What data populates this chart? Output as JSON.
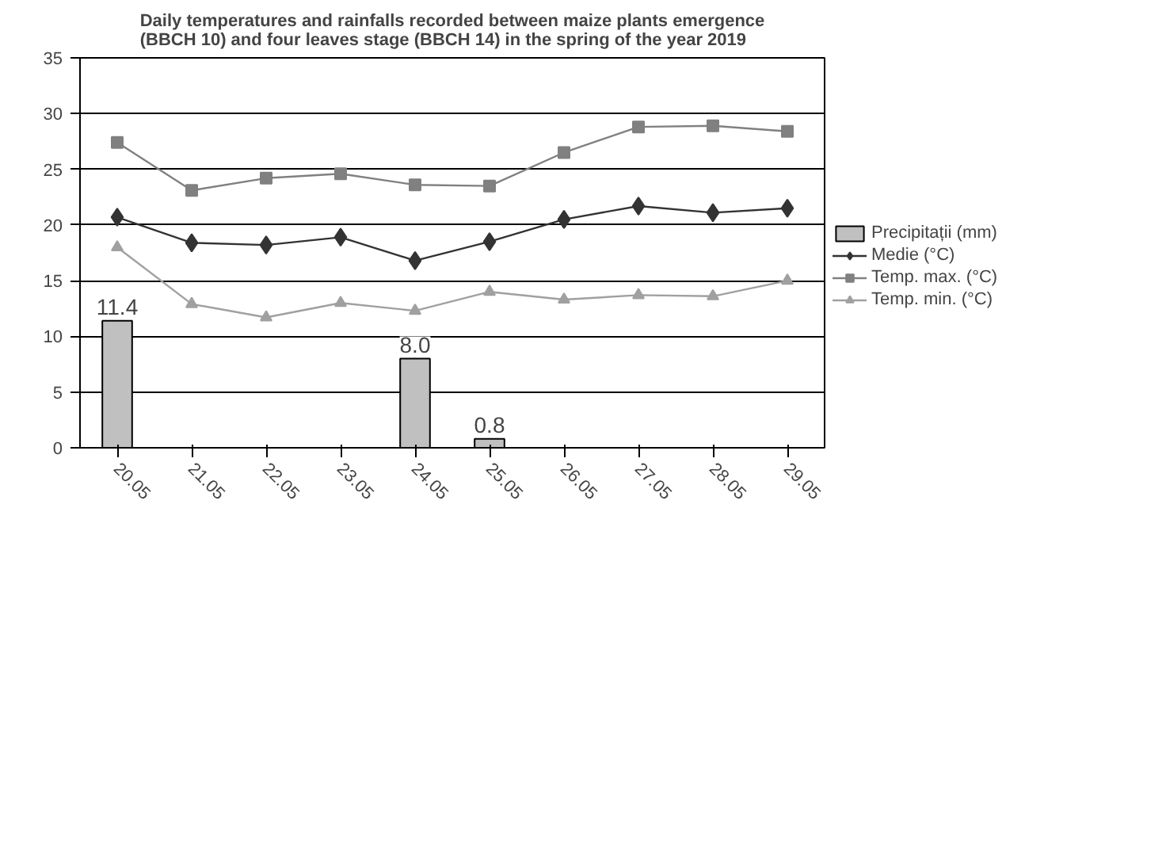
{
  "chart_data": {
    "type": "line",
    "title": "Daily temperatures and rainfalls recorded between maize plants emergence\n(BBCH 10) and four leaves stage (BBCH 14) in the spring of the year 2019",
    "categories": [
      "20.05",
      "21.05",
      "22.05",
      "23.05",
      "24.05",
      "25.05",
      "26.05",
      "27.05",
      "28.05",
      "29.05"
    ],
    "series": [
      {
        "name": "Precipitații (mm)",
        "type": "bar",
        "color": "#c0c0c0",
        "values": [
          11.4,
          null,
          null,
          null,
          8.0,
          0.8,
          null,
          null,
          null,
          null
        ],
        "value_labels": [
          "11.4",
          null,
          null,
          null,
          "8.0",
          "0.8",
          null,
          null,
          null,
          null
        ]
      },
      {
        "name": "Medie (°C)",
        "color": "#333333",
        "marker": "diamond",
        "values": [
          20.7,
          18.4,
          18.2,
          18.9,
          16.8,
          18.5,
          20.5,
          21.7,
          21.1,
          21.5
        ]
      },
      {
        "name": "Temp. max. (°C)",
        "color": "#808080",
        "marker": "square",
        "values": [
          27.4,
          23.1,
          24.2,
          24.6,
          23.6,
          23.5,
          26.5,
          28.8,
          28.9,
          28.4
        ]
      },
      {
        "name": "Temp. min. (°C)",
        "color": "#a0a0a0",
        "marker": "triangle",
        "values": [
          18.0,
          12.9,
          11.7,
          13.0,
          12.3,
          14.0,
          13.3,
          13.7,
          13.6,
          15.0
        ]
      }
    ],
    "ylim": [
      0,
      35
    ],
    "yticks": [
      0,
      5,
      10,
      15,
      20,
      25,
      30,
      35
    ],
    "grid": "y",
    "legend": "right"
  }
}
